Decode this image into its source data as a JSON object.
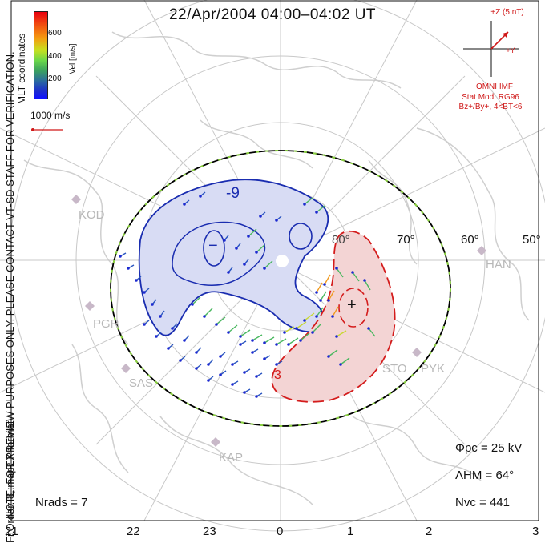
{
  "title": "22/Apr/2004 04:00–04:02 UT",
  "side_note": "NOTE: FOR PREVIEW PURPOSES ONLY. PLEASE CONTACT VT-SD STAFF FOR VERIFICATION.",
  "side_note_2": "FitOrder: 8, mapEX format",
  "coord_label": "MLT coordinates",
  "colorbar": {
    "unit": "Vel [m/s]",
    "ticks": [
      "600",
      "400",
      "200"
    ]
  },
  "velocity_scale": "1000 m/s",
  "imf": {
    "z_label": "+Z (5 nT)",
    "y_label": "+Y",
    "source": "OMNI IMF",
    "model_1": "Stat Mod: RG96",
    "model_2": "Bz+/By+, 4<BT<6"
  },
  "latitudes": [
    "80°",
    "70°",
    "60°",
    "50°"
  ],
  "stations": [
    "KOD",
    "PGR",
    "SAS",
    "KAP",
    "STO",
    "PYK",
    "HAN"
  ],
  "contours": {
    "min_label": "-9",
    "max_label": "+",
    "min_marker": "−",
    "pos_label": "3"
  },
  "stats": {
    "phi_pc": "Φpc = 25 kV",
    "lambda_hm": "ΛHM = 64°",
    "n_vc": "Nvc = 441",
    "n_rads": "Nrads = 7"
  },
  "mlt_ticks": [
    "21",
    "22",
    "23",
    "0",
    "1",
    "2",
    "3"
  ],
  "colors": {
    "negative_contour": "#1a2db0",
    "positive_contour": "#d41c1c",
    "grid": "#c8c8c8",
    "hmb": "#000000",
    "hmb_dash": "#8ad040"
  }
}
